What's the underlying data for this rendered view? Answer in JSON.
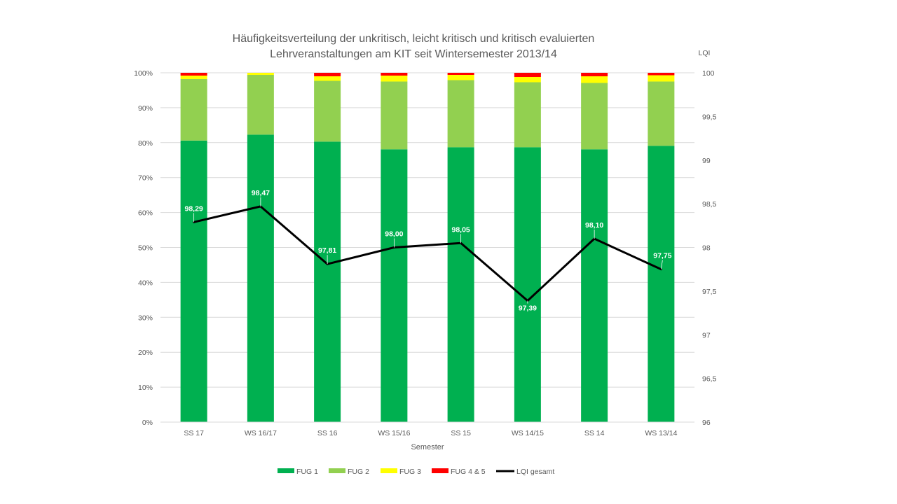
{
  "chart_data": {
    "type": "bar",
    "stacked": true,
    "title_lines": [
      "Häufigkeitsverteilung der unkritisch, leicht kritisch und kritisch evaluierten",
      "Lehrveranstaltungen am KIT seit Wintersemester 2013/14"
    ],
    "xlabel": "Semester",
    "ylabel": "",
    "y2label": "LQI",
    "categories": [
      "SS 17",
      "WS 16/17",
      "SS 16",
      "WS 15/16",
      "SS 15",
      "WS 14/15",
      "SS 14",
      "WS 13/14"
    ],
    "y_ticks": [
      "0%",
      "10%",
      "20%",
      "30%",
      "40%",
      "50%",
      "60%",
      "70%",
      "80%",
      "90%",
      "100%"
    ],
    "ylim": [
      0,
      100
    ],
    "y2_ticks": [
      "96",
      "96,5",
      "97",
      "97,5",
      "98",
      "98,5",
      "99",
      "99,5",
      "100"
    ],
    "y2lim": [
      96,
      100
    ],
    "series": [
      {
        "name": "FUG 1",
        "color": "#00b050",
        "values": [
          80.6,
          82.3,
          80.3,
          78.1,
          78.7,
          78.7,
          78.1,
          79.1
        ]
      },
      {
        "name": "FUG 2",
        "color": "#92d050",
        "values": [
          17.6,
          17.1,
          17.4,
          19.4,
          19.2,
          18.6,
          19.0,
          18.4
        ]
      },
      {
        "name": "FUG 3",
        "color": "#ffff00",
        "values": [
          1.0,
          0.6,
          1.3,
          1.7,
          1.5,
          1.5,
          1.9,
          1.8
        ]
      },
      {
        "name": "FUG 4 & 5",
        "color": "#ff0000",
        "values": [
          0.8,
          0.0,
          1.0,
          0.8,
          0.6,
          1.2,
          1.0,
          0.7
        ]
      }
    ],
    "line_series": {
      "name": "LQI gesamt",
      "color": "#000000",
      "axis": "secondary",
      "values": [
        98.29,
        98.47,
        97.81,
        98.0,
        98.05,
        97.39,
        98.1,
        97.75
      ],
      "labels": [
        "98,29",
        "98,47",
        "97,81",
        "98,00",
        "98,05",
        "97,39",
        "98,10",
        "97,75"
      ]
    },
    "grid": true,
    "legend_position": "bottom"
  }
}
